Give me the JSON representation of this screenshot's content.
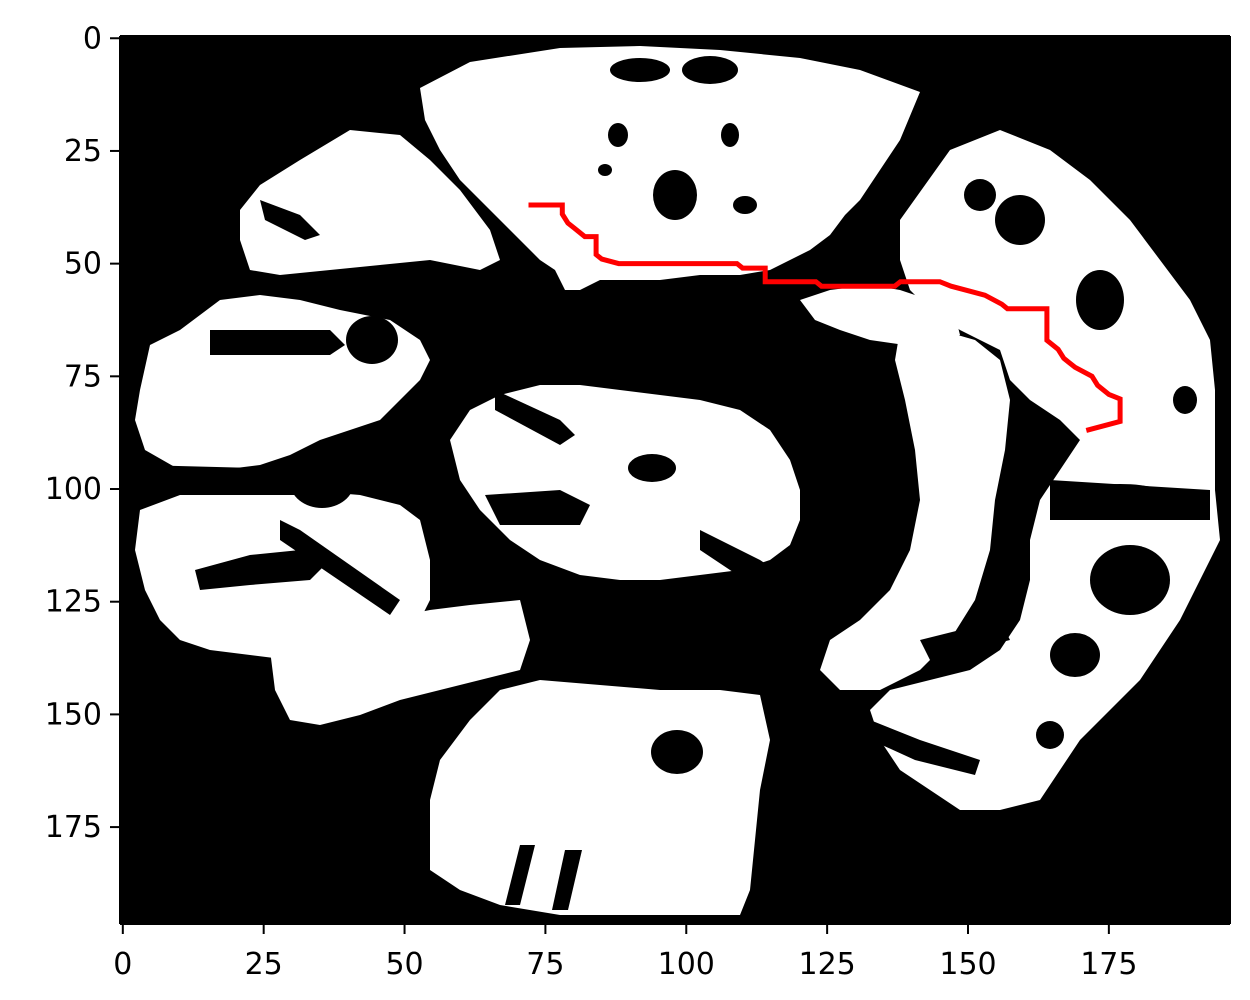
{
  "chart_data": {
    "type": "grid-map",
    "xlim": [
      0,
      196
    ],
    "ylim": [
      196,
      0
    ],
    "xticks": [
      "0",
      "25",
      "50",
      "75",
      "100",
      "125",
      "150",
      "175"
    ],
    "yticks": [
      "0",
      "25",
      "50",
      "75",
      "100",
      "125",
      "150",
      "175"
    ],
    "background_color": "#000000",
    "free_color": "#ffffff",
    "path_color": "#ff0000",
    "path": [
      [
        72,
        37
      ],
      [
        78,
        37
      ],
      [
        78,
        39
      ],
      [
        79,
        41
      ],
      [
        80,
        42
      ],
      [
        82,
        44
      ],
      [
        84,
        44
      ],
      [
        84,
        48
      ],
      [
        85,
        49
      ],
      [
        88,
        50
      ],
      [
        109,
        50
      ],
      [
        110,
        51
      ],
      [
        114,
        51
      ],
      [
        114,
        54
      ],
      [
        123,
        54
      ],
      [
        124,
        55
      ],
      [
        137,
        55
      ],
      [
        138,
        54
      ],
      [
        145,
        54
      ],
      [
        147,
        55
      ],
      [
        150,
        56
      ],
      [
        153,
        57
      ],
      [
        156,
        59
      ],
      [
        157,
        60
      ],
      [
        164,
        60
      ],
      [
        164,
        67
      ],
      [
        166,
        69
      ],
      [
        167,
        71
      ],
      [
        168,
        72
      ],
      [
        169,
        73
      ],
      [
        172,
        75
      ],
      [
        173,
        77
      ],
      [
        175,
        79
      ],
      [
        177,
        80
      ],
      [
        177,
        85
      ],
      [
        174,
        86
      ],
      [
        171,
        87
      ]
    ]
  }
}
